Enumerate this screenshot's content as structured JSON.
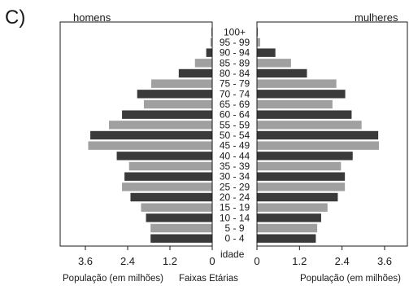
{
  "panel_label": "C)",
  "chart_data": {
    "type": "bar",
    "panel_label": "C)",
    "left_title": "homens",
    "right_title": "mulheres",
    "xlabel_left": "População (em milhões)",
    "xlabel_right": "População (em milhões)",
    "center_label": "Faixas Etárias",
    "age_axis_label": "idade",
    "x_ticks_left": [
      "3.6",
      "2.4",
      "1.2",
      "0"
    ],
    "x_ticks_right": [
      "0",
      "1.2",
      "2.4",
      "3.6"
    ],
    "xlim": [
      0,
      4.2
    ],
    "categories": [
      "100+",
      "95 - 99",
      "90 - 94",
      "85 - 89",
      "80 - 84",
      "75 - 79",
      "70 - 74",
      "65 - 69",
      "60 - 64",
      "55 - 59",
      "50 - 54",
      "45 - 49",
      "40 - 44",
      "35 - 39",
      "30 - 34",
      "25 - 29",
      "20 - 24",
      "15 - 19",
      "10 - 14",
      "5 - 9",
      "0 - 4"
    ],
    "series": [
      {
        "name": "homens",
        "values": [
          0.02,
          0.05,
          0.17,
          0.49,
          0.95,
          1.73,
          2.13,
          1.94,
          2.56,
          2.93,
          3.46,
          3.52,
          2.71,
          2.36,
          2.49,
          2.56,
          2.32,
          2.02,
          1.88,
          1.75,
          1.75
        ]
      },
      {
        "name": "mulheres",
        "values": [
          0.02,
          0.09,
          0.52,
          0.96,
          1.41,
          2.24,
          2.49,
          2.13,
          2.67,
          2.95,
          3.42,
          3.44,
          2.7,
          2.37,
          2.48,
          2.48,
          2.28,
          1.99,
          1.81,
          1.7,
          1.66
        ]
      }
    ],
    "bar_colors": [
      "#3a3a3a",
      "#a0a0a0"
    ],
    "grid": false,
    "legend": "none"
  }
}
